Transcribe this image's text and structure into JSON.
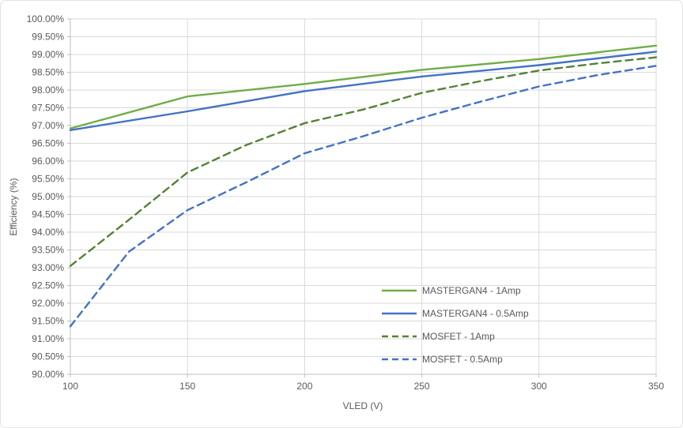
{
  "chart_data": {
    "type": "line",
    "title": "",
    "xlabel": "VLED (V)",
    "ylabel": "Efficiency (%)",
    "xlim": [
      100,
      350
    ],
    "ylim": [
      90,
      100
    ],
    "grid": true,
    "legend_position": "inside-bottom-right",
    "axis_color": "#BFBFBF",
    "gridline_color": "#D9D9D9",
    "tick_text_color": "#595959",
    "x_ticks": [
      100,
      150,
      200,
      250,
      300,
      350
    ],
    "x_tick_labels": [
      "100",
      "150",
      "200",
      "250",
      "300",
      "350"
    ],
    "y_ticks": [
      100,
      99.5,
      99,
      98.5,
      98,
      97.5,
      97,
      96.5,
      96,
      95.5,
      95,
      94.5,
      94,
      93.5,
      93,
      92.5,
      92,
      91.5,
      91,
      90.5,
      90
    ],
    "y_tick_labels": [
      "100.00%",
      "99.50%",
      "99.00%",
      "98.50%",
      "98.00%",
      "97.50%",
      "97.00%",
      "96.50%",
      "96.00%",
      "95.50%",
      "95.00%",
      "94.50%",
      "94.00%",
      "93.50%",
      "93.00%",
      "92.50%",
      "92.00%",
      "91.50%",
      "91.00%",
      "90.50%",
      "90.00%"
    ],
    "series": [
      {
        "name": "MASTERGAN4 - 1Amp",
        "color": "#70AD47",
        "style": "solid",
        "x": [
          100,
          150,
          200,
          250,
          300,
          350
        ],
        "y": [
          96.92,
          97.82,
          98.17,
          98.57,
          98.87,
          99.25
        ]
      },
      {
        "name": "MASTERGAN4 - 0.5Amp",
        "color": "#4472C4",
        "style": "solid",
        "x": [
          100,
          150,
          200,
          250,
          300,
          350
        ],
        "y": [
          96.87,
          97.4,
          97.97,
          98.38,
          98.7,
          99.08
        ]
      },
      {
        "name": "MOSFET - 1Amp",
        "color": "#548235",
        "style": "dashed",
        "x": [
          100,
          125,
          150,
          175,
          200,
          225,
          250,
          275,
          300,
          325,
          350
        ],
        "y": [
          93.05,
          94.35,
          95.68,
          96.45,
          97.07,
          97.45,
          97.92,
          98.25,
          98.55,
          98.75,
          98.92
        ]
      },
      {
        "name": "MOSFET - 0.5Amp",
        "color": "#4472C4",
        "style": "dashed",
        "x": [
          100,
          125,
          150,
          175,
          200,
          225,
          250,
          275,
          300,
          325,
          350
        ],
        "y": [
          91.35,
          93.45,
          94.62,
          95.4,
          96.22,
          96.7,
          97.22,
          97.67,
          98.1,
          98.42,
          98.68
        ]
      }
    ]
  }
}
